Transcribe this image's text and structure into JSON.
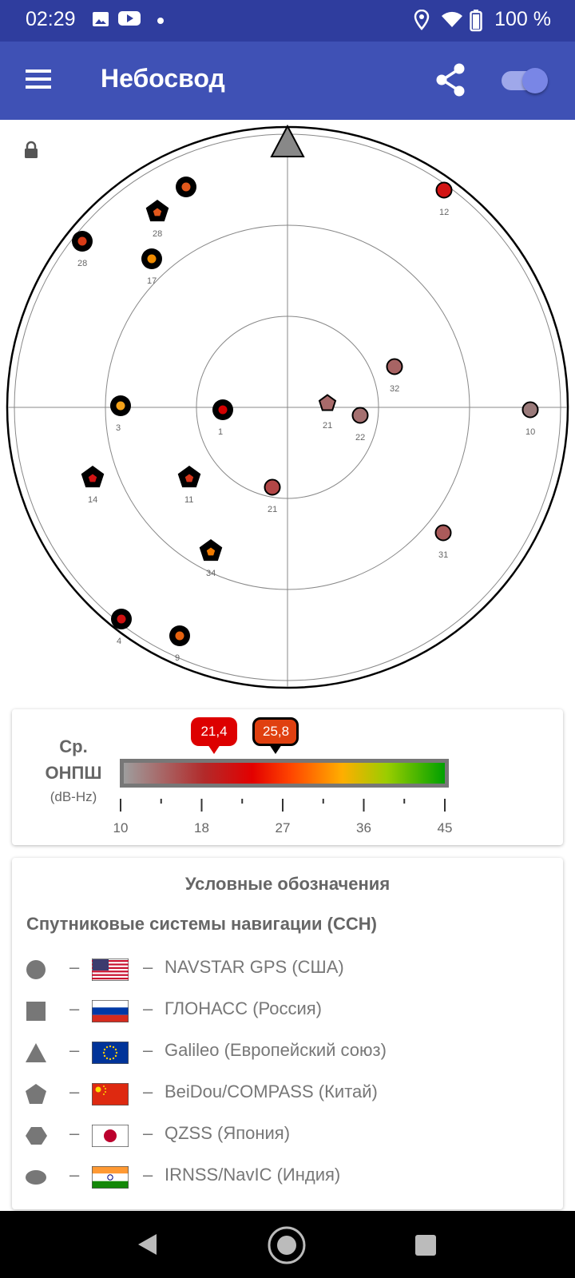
{
  "status": {
    "time": "02:29",
    "battery": "100 %"
  },
  "toolbar": {
    "title": "Небосвод",
    "toggle_on": true
  },
  "sky": {
    "satellites": [
      {
        "id": "19",
        "shape": "circle",
        "fill": "#e2581c",
        "ring": "black"
      },
      {
        "id": "28",
        "shape": "pentagon",
        "fill": "#e2581c",
        "ring": "black",
        "label": "28"
      },
      {
        "id": "28b",
        "shape": "circle",
        "fill": "#d73b16",
        "ring": "black",
        "label": "28"
      },
      {
        "id": "17",
        "shape": "circle",
        "fill": "#f08b00",
        "ring": "black",
        "label": "17"
      },
      {
        "id": "12",
        "shape": "circle",
        "fill": "#d21414",
        "ring": "thin",
        "label": "12"
      },
      {
        "id": "32",
        "shape": "circle",
        "fill": "#a86464",
        "ring": "thin",
        "label": "32"
      },
      {
        "id": "3",
        "shape": "circle",
        "fill": "#f4a21a",
        "ring": "black",
        "label": "3"
      },
      {
        "id": "1",
        "shape": "circle",
        "fill": "#d40000",
        "ring": "black",
        "label": "1"
      },
      {
        "id": "21p",
        "shape": "pentagon",
        "fill": "#a86a6a",
        "ring": "thin",
        "label": "21"
      },
      {
        "id": "22",
        "shape": "circle",
        "fill": "#a57070",
        "ring": "thin",
        "label": "22"
      },
      {
        "id": "10",
        "shape": "circle",
        "fill": "#9a7a7a",
        "ring": "thin",
        "label": "10"
      },
      {
        "id": "14",
        "shape": "pentagon",
        "fill": "#d01414",
        "ring": "black",
        "label": "14"
      },
      {
        "id": "11",
        "shape": "pentagon",
        "fill": "#d43418",
        "ring": "black",
        "label": "11"
      },
      {
        "id": "21",
        "shape": "circle",
        "fill": "#b24646",
        "ring": "thin",
        "label": "21"
      },
      {
        "id": "34",
        "shape": "pentagon",
        "fill": "#f07a00",
        "ring": "black",
        "label": "34"
      },
      {
        "id": "31",
        "shape": "circle",
        "fill": "#aa5a5a",
        "ring": "thin",
        "label": "31"
      },
      {
        "id": "4",
        "shape": "circle",
        "fill": "#cf1111",
        "ring": "black",
        "label": "4"
      },
      {
        "id": "9",
        "shape": "circle",
        "fill": "#e5620f",
        "ring": "black",
        "label": "9"
      }
    ]
  },
  "snr": {
    "title_line1": "Ср.",
    "title_line2": "ОНПШ",
    "unit": "(dB-Hz)",
    "avg_label": "21,4",
    "max_label": "25,8",
    "ticks": [
      "10",
      "18",
      "27",
      "36",
      "45"
    ]
  },
  "legend": {
    "title": "Условные обозначения",
    "subtitle": "Спутниковые системы навигации (ССН)",
    "dash": "–",
    "rows": [
      {
        "shape": "circle-icon",
        "name": "NAVSTAR GPS (США)"
      },
      {
        "shape": "square-icon",
        "name": "ГЛОНАСС (Россия)"
      },
      {
        "shape": "triangle-icon",
        "name": "Galileo (Европейский союз)"
      },
      {
        "shape": "pentagon-icon",
        "name": "BeiDou/COMPASS (Китай)"
      },
      {
        "shape": "hexagon-icon",
        "name": "QZSS (Япония)"
      },
      {
        "shape": "oval-icon",
        "name": "IRNSS/NavIC (Индия)"
      }
    ]
  }
}
